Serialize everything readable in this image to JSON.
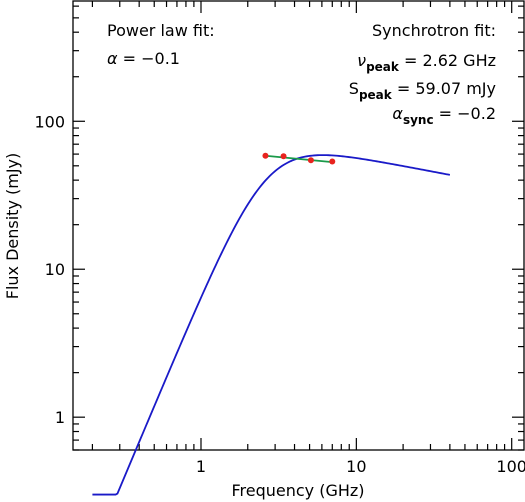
{
  "chart_data": {
    "type": "line",
    "xlabel": "Frequency (GHz)",
    "ylabel": "Flux Density (mJy)",
    "xscale": "log",
    "yscale": "log",
    "xlim": [
      0.15,
      120
    ],
    "ylim": [
      0.6,
      650
    ],
    "x_ticks": [
      {
        "value": 1,
        "label": "1"
      },
      {
        "value": 10,
        "label": "10"
      },
      {
        "value": 100,
        "label": "100"
      }
    ],
    "y_ticks": [
      {
        "value": 1,
        "label": "1"
      },
      {
        "value": 10,
        "label": "10"
      },
      {
        "value": 100,
        "label": "100"
      }
    ],
    "grid": false,
    "series": [
      {
        "kind": "synchrotron_model",
        "color": "#1a1ac8",
        "nu_peak": 2.62,
        "s_peak": 59.07,
        "alpha_thick": 2.5,
        "alpha_thin": -0.2,
        "x_range": [
          0.2,
          40
        ]
      },
      {
        "kind": "power_law_fit",
        "color": "#1a9a4a",
        "alpha": -0.1,
        "x_range": [
          2.6,
          7.0
        ],
        "x_ref": 2.6,
        "y_ref": 58.5
      },
      {
        "kind": "measurements",
        "color": "#e8231e",
        "x": [
          2.6,
          3.4,
          5.1,
          7.0
        ],
        "y": [
          58.5,
          58.0,
          54.5,
          53.5
        ]
      }
    ],
    "annotations": {
      "power_law": {
        "heading": "Power law fit:",
        "alpha_symbol": "α",
        "alpha_text": " = −0.1"
      },
      "synchrotron": {
        "heading": "Synchrotron fit:",
        "nu_symbol": "ν",
        "nu_sub": "peak",
        "nu_text": " = 2.62 GHz",
        "s_symbol": "S",
        "s_sub": "peak",
        "s_text": " = 59.07 mJy",
        "alpha_symbol": "α",
        "alpha_sub": "sync",
        "alpha_text": " = −0.2"
      }
    }
  }
}
